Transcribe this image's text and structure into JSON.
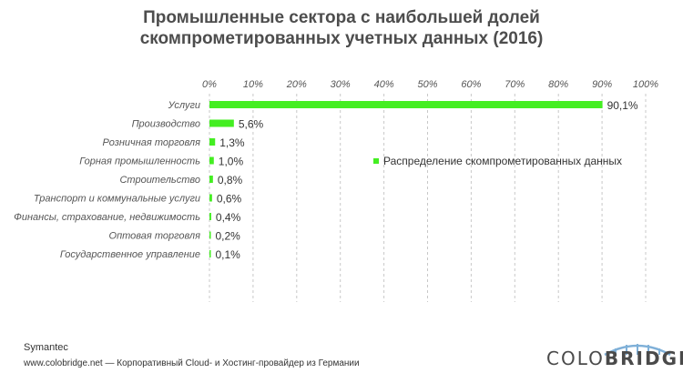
{
  "chart_data": {
    "type": "bar",
    "orientation": "horizontal",
    "title_line1": "Промышленные сектора с наибольшей долей",
    "title_line2": "скомпрометированных учетных данных (2016)",
    "categories": [
      "Услуги",
      "Производство",
      "Розничная торговля",
      "Горная промышленность",
      "Строительство",
      "Транспорт и коммунальные услуги",
      "Финансы, страхование, недвижимость",
      "Оптовая торговля",
      "Государственное управление"
    ],
    "values": [
      90.1,
      5.6,
      1.3,
      1.0,
      0.8,
      0.6,
      0.4,
      0.2,
      0.1
    ],
    "value_labels": [
      "90,1%",
      "5,6%",
      "1,3%",
      "1,0%",
      "0,8%",
      "0,6%",
      "0,4%",
      "0,2%",
      "0,1%"
    ],
    "xlim": [
      0,
      100
    ],
    "x_ticks": [
      "0%",
      "10%",
      "20%",
      "30%",
      "40%",
      "50%",
      "60%",
      "70%",
      "80%",
      "90%",
      "100%"
    ],
    "grid": "vertical dashed",
    "legend": "Распределение скомпрометированных данных",
    "legend_position": "right",
    "bar_color": "#44ee22"
  },
  "source": "Symantec",
  "footer": "www.colobridge.net — Корпоративный Cloud- и Хостинг-провайдер из Германии",
  "logo": {
    "part1": "COLO",
    "part2": "BRIDGE"
  }
}
